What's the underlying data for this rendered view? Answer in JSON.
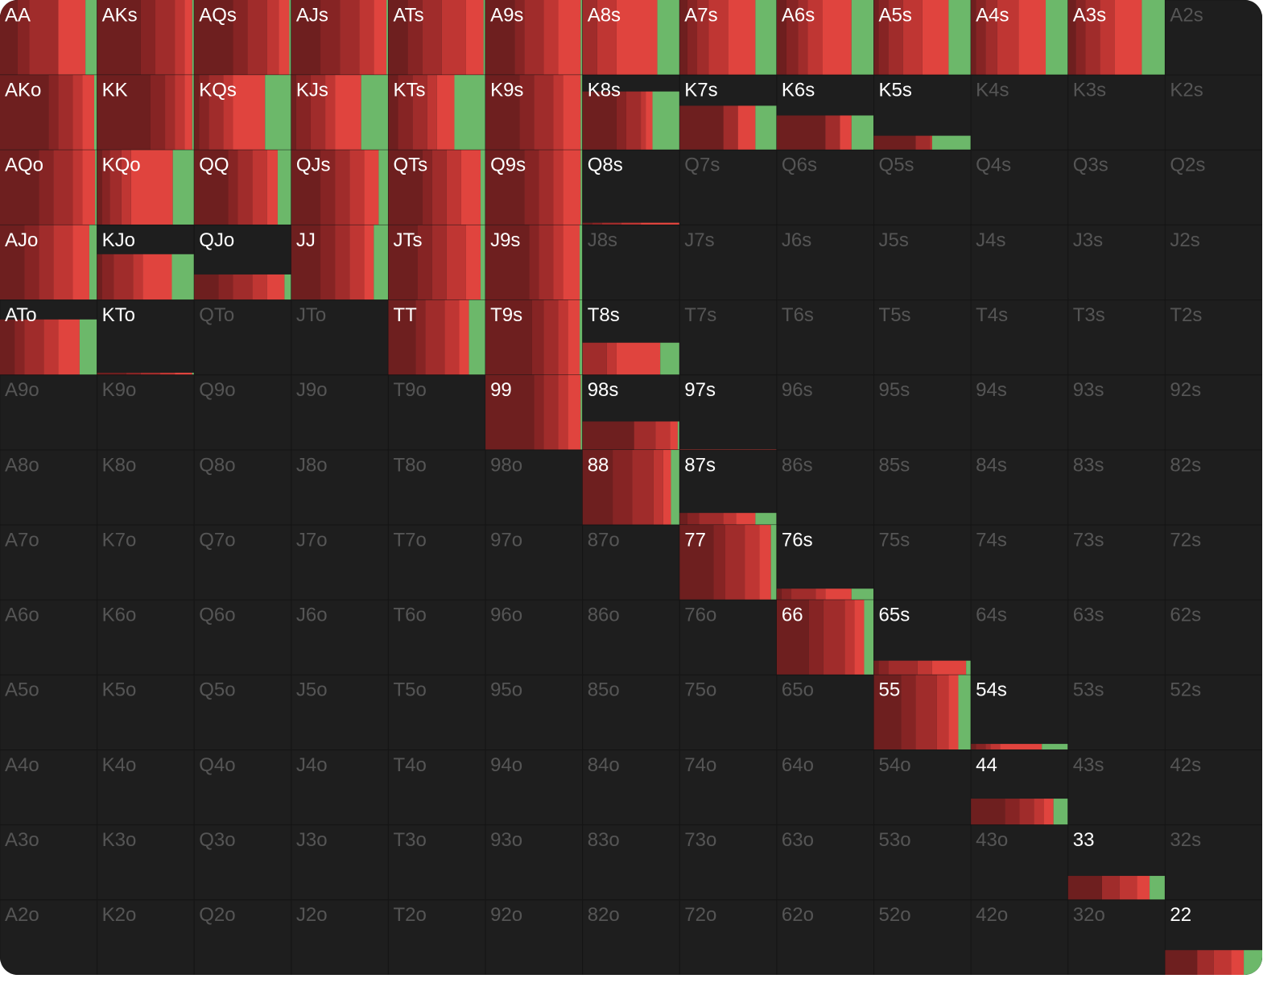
{
  "grid": {
    "hands": [
      [
        "AA",
        "AKs",
        "AQs",
        "AJs",
        "ATs",
        "A9s",
        "A8s",
        "A7s",
        "A6s",
        "A5s",
        "A4s",
        "A3s",
        "A2s"
      ],
      [
        "AKo",
        "KK",
        "KQs",
        "KJs",
        "KTs",
        "K9s",
        "K8s",
        "K7s",
        "K6s",
        "K5s",
        "K4s",
        "K3s",
        "K2s"
      ],
      [
        "AQo",
        "KQo",
        "QQ",
        "QJs",
        "QTs",
        "Q9s",
        "Q8s",
        "Q7s",
        "Q6s",
        "Q5s",
        "Q4s",
        "Q3s",
        "Q2s"
      ],
      [
        "AJo",
        "KJo",
        "QJo",
        "JJ",
        "JTs",
        "J9s",
        "J8s",
        "J7s",
        "J6s",
        "J5s",
        "J4s",
        "J3s",
        "J2s"
      ],
      [
        "ATo",
        "KTo",
        "QTo",
        "JTo",
        "TT",
        "T9s",
        "T8s",
        "T7s",
        "T6s",
        "T5s",
        "T4s",
        "T3s",
        "T2s"
      ],
      [
        "A9o",
        "K9o",
        "Q9o",
        "J9o",
        "T9o",
        "99",
        "98s",
        "97s",
        "96s",
        "95s",
        "94s",
        "93s",
        "92s"
      ],
      [
        "A8o",
        "K8o",
        "Q8o",
        "J8o",
        "T8o",
        "98o",
        "88",
        "87s",
        "86s",
        "85s",
        "84s",
        "83s",
        "82s"
      ],
      [
        "A7o",
        "K7o",
        "Q7o",
        "J7o",
        "T7o",
        "97o",
        "87o",
        "77",
        "76s",
        "75s",
        "74s",
        "73s",
        "72s"
      ],
      [
        "A6o",
        "K6o",
        "Q6o",
        "J6o",
        "T6o",
        "96o",
        "86o",
        "76o",
        "66",
        "65s",
        "64s",
        "63s",
        "62s"
      ],
      [
        "A5o",
        "K5o",
        "Q5o",
        "J5o",
        "T5o",
        "95o",
        "85o",
        "75o",
        "65o",
        "55",
        "54s",
        "53s",
        "52s"
      ],
      [
        "A4o",
        "K4o",
        "Q4o",
        "J4o",
        "T4o",
        "94o",
        "84o",
        "74o",
        "64o",
        "54o",
        "44",
        "43s",
        "42s"
      ],
      [
        "A3o",
        "K3o",
        "Q3o",
        "J3o",
        "T3o",
        "93o",
        "83o",
        "73o",
        "63o",
        "53o",
        "43o",
        "33",
        "32s"
      ],
      [
        "A2o",
        "K2o",
        "Q2o",
        "J2o",
        "T2o",
        "92o",
        "82o",
        "72o",
        "62o",
        "52o",
        "42o",
        "32o",
        "22"
      ]
    ],
    "freq": [
      [
        100,
        100,
        100,
        100,
        100,
        100,
        100,
        100,
        100,
        100,
        100,
        100,
        0
      ],
      [
        100,
        100,
        100,
        100,
        100,
        100,
        78,
        59,
        46,
        19,
        0,
        0,
        0
      ],
      [
        100,
        100,
        100,
        100,
        100,
        100,
        3,
        0,
        0,
        0,
        0,
        0,
        0
      ],
      [
        100,
        61,
        34,
        100,
        100,
        100,
        0,
        0,
        0,
        0,
        0,
        0,
        0
      ],
      [
        74,
        3,
        0,
        0,
        100,
        100,
        43,
        0,
        0,
        0,
        0,
        0,
        0
      ],
      [
        0,
        0,
        0,
        0,
        0,
        100,
        38,
        1,
        0,
        0,
        0,
        0,
        0
      ],
      [
        0,
        0,
        0,
        0,
        0,
        0,
        100,
        16,
        0,
        0,
        0,
        0,
        0
      ],
      [
        0,
        0,
        0,
        0,
        0,
        0,
        0,
        100,
        15,
        0,
        0,
        0,
        0
      ],
      [
        0,
        0,
        0,
        0,
        0,
        0,
        0,
        0,
        100,
        19,
        0,
        0,
        0
      ],
      [
        0,
        0,
        0,
        0,
        0,
        0,
        0,
        0,
        0,
        100,
        8,
        0,
        0
      ],
      [
        0,
        0,
        0,
        0,
        0,
        0,
        0,
        0,
        0,
        0,
        35,
        0,
        0
      ],
      [
        0,
        0,
        0,
        0,
        0,
        0,
        0,
        0,
        0,
        0,
        0,
        32,
        0
      ],
      [
        0,
        0,
        0,
        0,
        0,
        0,
        0,
        0,
        0,
        0,
        0,
        0,
        33
      ]
    ],
    "action_colors": [
      "#6e1f1f",
      "#862424",
      "#a02c2b",
      "#bf3633",
      "#e0443e",
      "#6cb86a"
    ],
    "mix": [
      [
        [
          18,
          12,
          30,
          0,
          28,
          12
        ],
        [
          45,
          15,
          20,
          10,
          8,
          2
        ],
        [
          40,
          15,
          20,
          12,
          11,
          2
        ],
        [
          30,
          20,
          20,
          15,
          13,
          2
        ],
        [
          20,
          15,
          20,
          25,
          18,
          2
        ],
        [
          30,
          10,
          20,
          15,
          23,
          2
        ],
        [
          0,
          0,
          15,
          20,
          42,
          23
        ],
        [
          8,
          10,
          12,
          20,
          28,
          22
        ],
        [
          10,
          12,
          10,
          15,
          30,
          23
        ],
        [
          5,
          10,
          15,
          20,
          27,
          23
        ],
        [
          5,
          10,
          12,
          22,
          28,
          23
        ],
        [
          8,
          10,
          15,
          15,
          28,
          24
        ],
        null
      ],
      [
        [
          50,
          10,
          15,
          10,
          12,
          3
        ],
        [
          55,
          15,
          10,
          10,
          8,
          2
        ],
        [
          5,
          10,
          15,
          10,
          33,
          27
        ],
        [
          5,
          15,
          15,
          10,
          27,
          28
        ],
        [
          10,
          15,
          15,
          10,
          18,
          32
        ],
        [
          35,
          15,
          20,
          10,
          18,
          2
        ],
        [
          35,
          10,
          15,
          5,
          7,
          28
        ],
        [
          45,
          0,
          15,
          0,
          18,
          22
        ],
        [
          50,
          0,
          15,
          0,
          12,
          23
        ],
        [
          43,
          0,
          15,
          2,
          0,
          40
        ],
        null,
        null,
        null
      ],
      [
        [
          40,
          15,
          20,
          10,
          13,
          2
        ],
        [
          5,
          8,
          12,
          10,
          43,
          22
        ],
        [
          35,
          10,
          15,
          15,
          11,
          14
        ],
        [
          30,
          15,
          15,
          15,
          15,
          10
        ],
        [
          35,
          10,
          15,
          15,
          20,
          5
        ],
        [
          40,
          15,
          15,
          10,
          18,
          2
        ],
        [
          10,
          10,
          20,
          20,
          40,
          0
        ],
        null,
        null,
        null,
        null,
        null,
        null
      ],
      [
        [
          25,
          15,
          15,
          20,
          17,
          8
        ],
        [
          5,
          12,
          20,
          10,
          30,
          23
        ],
        [
          25,
          15,
          20,
          15,
          18,
          7
        ],
        [
          30,
          15,
          15,
          15,
          10,
          15
        ],
        [
          30,
          15,
          15,
          20,
          15,
          5
        ],
        [
          45,
          10,
          15,
          10,
          17,
          3
        ],
        null,
        null,
        null,
        null,
        null,
        null,
        null
      ],
      [
        [
          15,
          10,
          20,
          15,
          22,
          18
        ],
        [
          30,
          15,
          20,
          15,
          18,
          2
        ],
        null,
        null,
        [
          28,
          10,
          20,
          15,
          10,
          17
        ],
        [
          48,
          12,
          15,
          10,
          12,
          3
        ],
        [
          0,
          0,
          25,
          10,
          45,
          20
        ],
        null,
        null,
        null,
        null,
        null,
        null
      ],
      [
        null,
        null,
        null,
        null,
        null,
        [
          50,
          10,
          15,
          10,
          13,
          2
        ],
        [
          53,
          0,
          22,
          15,
          8,
          2
        ],
        [
          0,
          0,
          0,
          0,
          100,
          0
        ],
        null,
        null,
        null,
        null,
        null
      ],
      [
        null,
        null,
        null,
        null,
        null,
        null,
        [
          31,
          20,
          22,
          10,
          8,
          9
        ],
        [
          8,
          12,
          25,
          13,
          20,
          22
        ],
        null,
        null,
        null,
        null,
        null
      ],
      [
        null,
        null,
        null,
        null,
        null,
        null,
        null,
        [
          35,
          12,
          20,
          15,
          12,
          6
        ],
        [
          5,
          10,
          25,
          10,
          27,
          23
        ],
        null,
        null,
        null,
        null
      ],
      [
        null,
        null,
        null,
        null,
        null,
        null,
        null,
        null,
        [
          33,
          15,
          22,
          10,
          10,
          10
        ],
        [
          5,
          10,
          30,
          15,
          35,
          5
        ],
        null,
        null,
        null
      ],
      [
        null,
        null,
        null,
        null,
        null,
        null,
        null,
        null,
        null,
        [
          28,
          15,
          22,
          12,
          10,
          13
        ],
        [
          5,
          10,
          5,
          10,
          43,
          27
        ],
        null,
        null
      ],
      [
        null,
        null,
        null,
        null,
        null,
        null,
        null,
        null,
        null,
        null,
        [
          35,
          15,
          15,
          10,
          10,
          15
        ],
        null,
        null
      ],
      [
        null,
        null,
        null,
        null,
        null,
        null,
        null,
        null,
        null,
        null,
        null,
        [
          35,
          0,
          18,
          18,
          13,
          16
        ],
        null
      ],
      [
        null,
        null,
        null,
        null,
        null,
        null,
        null,
        null,
        null,
        null,
        null,
        null,
        [
          33,
          0,
          17,
          18,
          13,
          19
        ]
      ]
    ]
  }
}
